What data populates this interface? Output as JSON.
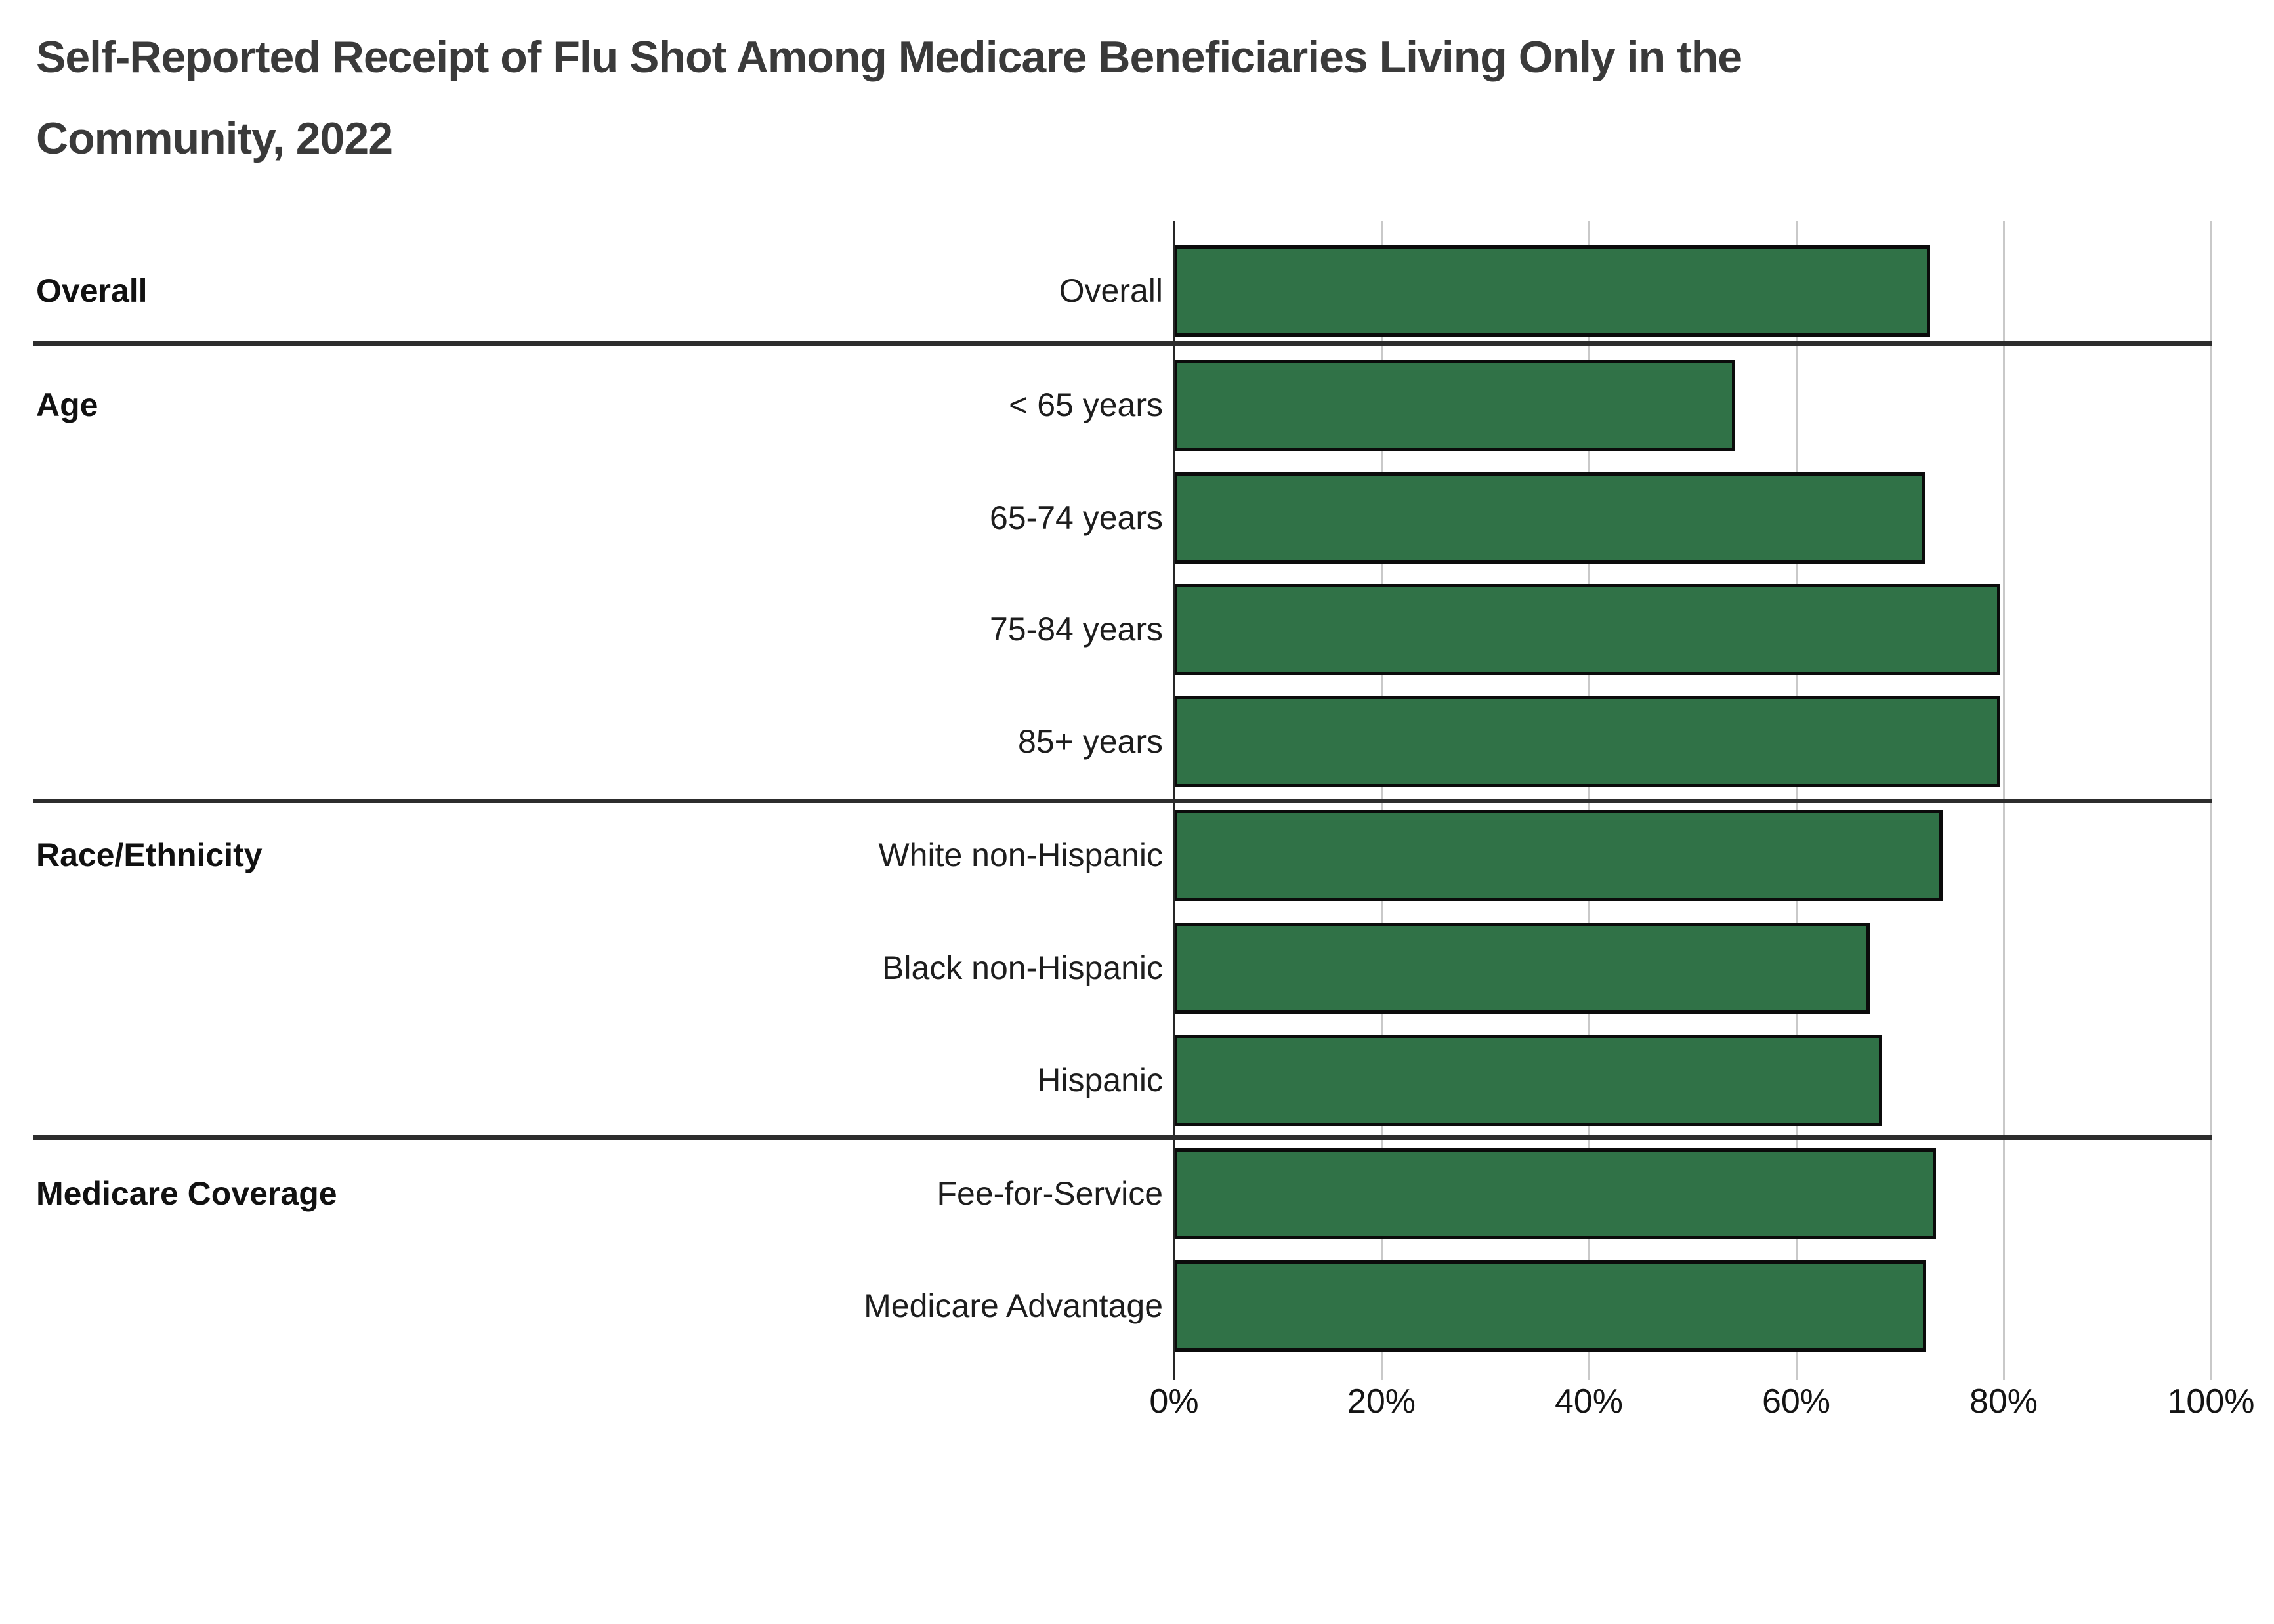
{
  "title_line1": "Self-Reported Receipt of Flu Shot Among Medicare Beneficiaries Living Only in the",
  "title_line2": "Community, 2022",
  "chart_data": {
    "type": "bar",
    "orientation": "horizontal",
    "title": "Self-Reported Receipt of Flu Shot Among Medicare Beneficiaries Living Only in the Community, 2022",
    "xlabel": "",
    "ylabel": "",
    "xlim": [
      0,
      100
    ],
    "x_tick_labels": [
      "0%",
      "20%",
      "40%",
      "60%",
      "80%",
      "100%"
    ],
    "x_tick_values": [
      0,
      20,
      40,
      60,
      80,
      100
    ],
    "grid": "vertical-gridlines-on",
    "legend": "none",
    "sections": [
      {
        "section_label": "Overall",
        "rows": [
          {
            "label": "Overall",
            "value": 72.9
          }
        ]
      },
      {
        "section_label": "Age",
        "rows": [
          {
            "label": "< 65 years",
            "value": 54.1
          },
          {
            "label": "65-74 years",
            "value": 72.4
          },
          {
            "label": "75-84 years",
            "value": 79.7
          },
          {
            "label": "85+ years",
            "value": 79.7
          }
        ]
      },
      {
        "section_label": "Race/Ethnicity",
        "rows": [
          {
            "label": "White non-Hispanic",
            "value": 74.1
          },
          {
            "label": "Black non-Hispanic",
            "value": 67.1
          },
          {
            "label": "Hispanic",
            "value": 68.3
          }
        ]
      },
      {
        "section_label": "Medicare Coverage",
        "rows": [
          {
            "label": "Fee-for-Service",
            "value": 73.5
          },
          {
            "label": "Medicare Advantage",
            "value": 72.5
          }
        ]
      }
    ],
    "colors": {
      "bar_fill": "#307247",
      "bar_outline": "#0b0b0b",
      "gridline": "#c9c9c9",
      "zero_axis": "#262626",
      "section_divider": "#2d2d2d",
      "title_text": "#3a3a3a",
      "label_text": "#1d1d1d",
      "background": "#ffffff"
    }
  }
}
